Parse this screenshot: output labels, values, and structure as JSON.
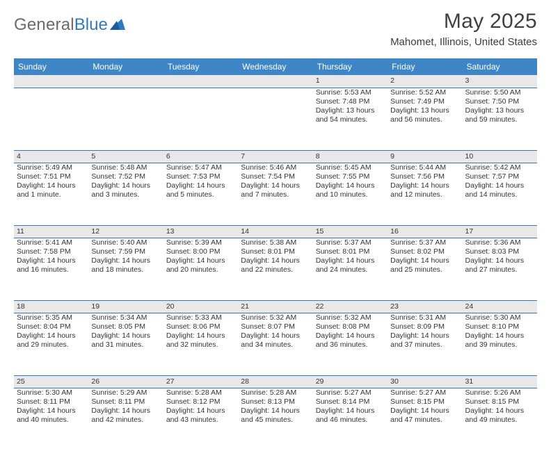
{
  "brand": {
    "left": "General",
    "right": "Blue"
  },
  "title": "May 2025",
  "location": "Mahomet, Illinois, United States",
  "colors": {
    "header_bg": "#3f86c6",
    "header_text": "#ffffff",
    "daynum_bg": "#e8e8e8",
    "rule": "#2f79bf",
    "brand_grey": "#6b6b6b",
    "brand_blue": "#2f79bf"
  },
  "weekdays": [
    "Sunday",
    "Monday",
    "Tuesday",
    "Wednesday",
    "Thursday",
    "Friday",
    "Saturday"
  ],
  "weeks": [
    [
      null,
      null,
      null,
      null,
      {
        "n": "1",
        "sr": "Sunrise: 5:53 AM",
        "ss": "Sunset: 7:48 PM",
        "dl": "Daylight: 13 hours and 54 minutes."
      },
      {
        "n": "2",
        "sr": "Sunrise: 5:52 AM",
        "ss": "Sunset: 7:49 PM",
        "dl": "Daylight: 13 hours and 56 minutes."
      },
      {
        "n": "3",
        "sr": "Sunrise: 5:50 AM",
        "ss": "Sunset: 7:50 PM",
        "dl": "Daylight: 13 hours and 59 minutes."
      }
    ],
    [
      {
        "n": "4",
        "sr": "Sunrise: 5:49 AM",
        "ss": "Sunset: 7:51 PM",
        "dl": "Daylight: 14 hours and 1 minute."
      },
      {
        "n": "5",
        "sr": "Sunrise: 5:48 AM",
        "ss": "Sunset: 7:52 PM",
        "dl": "Daylight: 14 hours and 3 minutes."
      },
      {
        "n": "6",
        "sr": "Sunrise: 5:47 AM",
        "ss": "Sunset: 7:53 PM",
        "dl": "Daylight: 14 hours and 5 minutes."
      },
      {
        "n": "7",
        "sr": "Sunrise: 5:46 AM",
        "ss": "Sunset: 7:54 PM",
        "dl": "Daylight: 14 hours and 7 minutes."
      },
      {
        "n": "8",
        "sr": "Sunrise: 5:45 AM",
        "ss": "Sunset: 7:55 PM",
        "dl": "Daylight: 14 hours and 10 minutes."
      },
      {
        "n": "9",
        "sr": "Sunrise: 5:44 AM",
        "ss": "Sunset: 7:56 PM",
        "dl": "Daylight: 14 hours and 12 minutes."
      },
      {
        "n": "10",
        "sr": "Sunrise: 5:42 AM",
        "ss": "Sunset: 7:57 PM",
        "dl": "Daylight: 14 hours and 14 minutes."
      }
    ],
    [
      {
        "n": "11",
        "sr": "Sunrise: 5:41 AM",
        "ss": "Sunset: 7:58 PM",
        "dl": "Daylight: 14 hours and 16 minutes."
      },
      {
        "n": "12",
        "sr": "Sunrise: 5:40 AM",
        "ss": "Sunset: 7:59 PM",
        "dl": "Daylight: 14 hours and 18 minutes."
      },
      {
        "n": "13",
        "sr": "Sunrise: 5:39 AM",
        "ss": "Sunset: 8:00 PM",
        "dl": "Daylight: 14 hours and 20 minutes."
      },
      {
        "n": "14",
        "sr": "Sunrise: 5:38 AM",
        "ss": "Sunset: 8:01 PM",
        "dl": "Daylight: 14 hours and 22 minutes."
      },
      {
        "n": "15",
        "sr": "Sunrise: 5:37 AM",
        "ss": "Sunset: 8:01 PM",
        "dl": "Daylight: 14 hours and 24 minutes."
      },
      {
        "n": "16",
        "sr": "Sunrise: 5:37 AM",
        "ss": "Sunset: 8:02 PM",
        "dl": "Daylight: 14 hours and 25 minutes."
      },
      {
        "n": "17",
        "sr": "Sunrise: 5:36 AM",
        "ss": "Sunset: 8:03 PM",
        "dl": "Daylight: 14 hours and 27 minutes."
      }
    ],
    [
      {
        "n": "18",
        "sr": "Sunrise: 5:35 AM",
        "ss": "Sunset: 8:04 PM",
        "dl": "Daylight: 14 hours and 29 minutes."
      },
      {
        "n": "19",
        "sr": "Sunrise: 5:34 AM",
        "ss": "Sunset: 8:05 PM",
        "dl": "Daylight: 14 hours and 31 minutes."
      },
      {
        "n": "20",
        "sr": "Sunrise: 5:33 AM",
        "ss": "Sunset: 8:06 PM",
        "dl": "Daylight: 14 hours and 32 minutes."
      },
      {
        "n": "21",
        "sr": "Sunrise: 5:32 AM",
        "ss": "Sunset: 8:07 PM",
        "dl": "Daylight: 14 hours and 34 minutes."
      },
      {
        "n": "22",
        "sr": "Sunrise: 5:32 AM",
        "ss": "Sunset: 8:08 PM",
        "dl": "Daylight: 14 hours and 36 minutes."
      },
      {
        "n": "23",
        "sr": "Sunrise: 5:31 AM",
        "ss": "Sunset: 8:09 PM",
        "dl": "Daylight: 14 hours and 37 minutes."
      },
      {
        "n": "24",
        "sr": "Sunrise: 5:30 AM",
        "ss": "Sunset: 8:10 PM",
        "dl": "Daylight: 14 hours and 39 minutes."
      }
    ],
    [
      {
        "n": "25",
        "sr": "Sunrise: 5:30 AM",
        "ss": "Sunset: 8:11 PM",
        "dl": "Daylight: 14 hours and 40 minutes."
      },
      {
        "n": "26",
        "sr": "Sunrise: 5:29 AM",
        "ss": "Sunset: 8:11 PM",
        "dl": "Daylight: 14 hours and 42 minutes."
      },
      {
        "n": "27",
        "sr": "Sunrise: 5:28 AM",
        "ss": "Sunset: 8:12 PM",
        "dl": "Daylight: 14 hours and 43 minutes."
      },
      {
        "n": "28",
        "sr": "Sunrise: 5:28 AM",
        "ss": "Sunset: 8:13 PM",
        "dl": "Daylight: 14 hours and 45 minutes."
      },
      {
        "n": "29",
        "sr": "Sunrise: 5:27 AM",
        "ss": "Sunset: 8:14 PM",
        "dl": "Daylight: 14 hours and 46 minutes."
      },
      {
        "n": "30",
        "sr": "Sunrise: 5:27 AM",
        "ss": "Sunset: 8:15 PM",
        "dl": "Daylight: 14 hours and 47 minutes."
      },
      {
        "n": "31",
        "sr": "Sunrise: 5:26 AM",
        "ss": "Sunset: 8:15 PM",
        "dl": "Daylight: 14 hours and 49 minutes."
      }
    ]
  ]
}
